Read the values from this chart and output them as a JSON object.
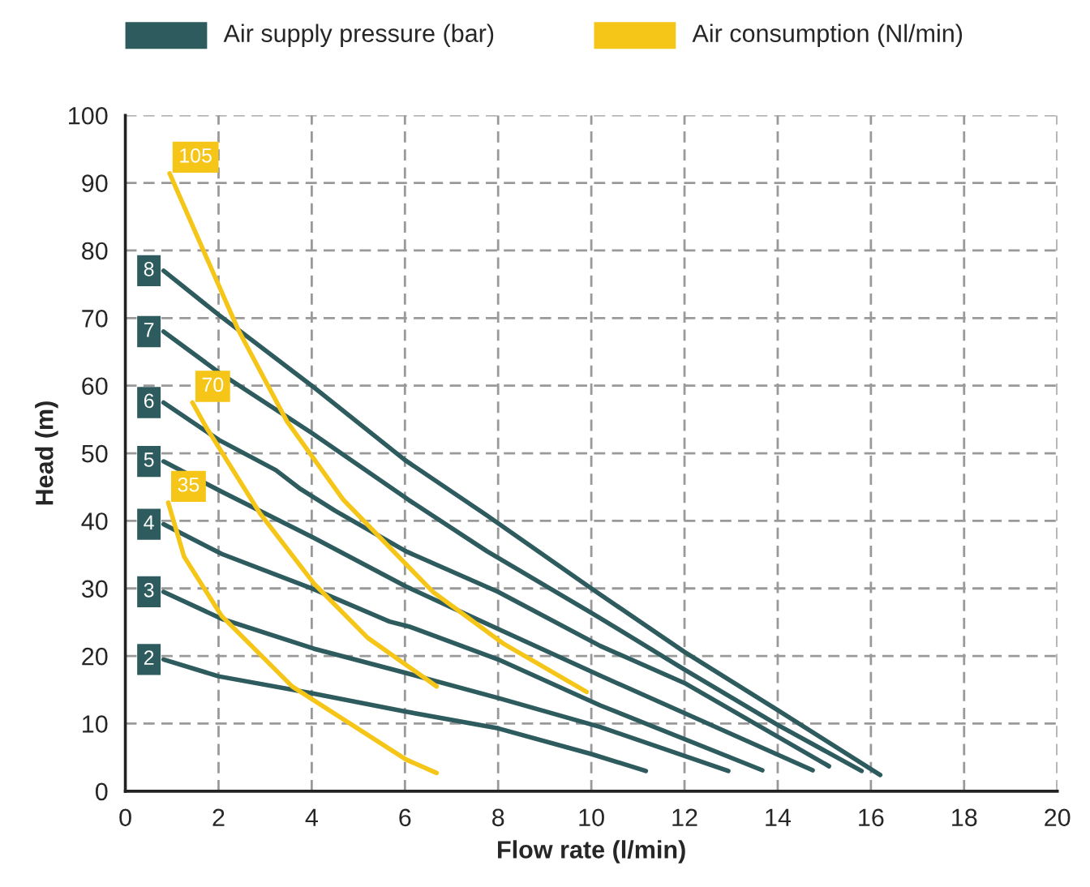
{
  "chart_data": {
    "type": "line",
    "xlabel": "Flow rate (l/min)",
    "ylabel": "Head (m)",
    "annotations": [
      "Air supply pressure (bar)",
      "Air consumption (Nl/min)"
    ],
    "grid": true,
    "line_style": "solid",
    "xlim": [
      0,
      20
    ],
    "xticks": [
      0,
      2,
      4,
      6,
      8,
      10,
      12,
      14,
      16,
      18,
      20
    ],
    "ylim": [
      0,
      100
    ],
    "yticks": [
      0,
      10,
      20,
      30,
      40,
      50,
      60,
      70,
      80,
      90,
      100
    ],
    "series": [
      {
        "name": "8",
        "color": "#2e5b5e",
        "x": [
          0.82,
          2,
          4,
          6,
          7.76,
          10,
          12,
          14,
          16.2
        ],
        "values": [
          77,
          70.5,
          60,
          49,
          40.8,
          30,
          20.6,
          12,
          2.4
        ]
      },
      {
        "name": "7",
        "color": "#2e5b5e",
        "x": [
          0.82,
          2,
          4,
          6.08,
          7.76,
          10,
          12,
          14,
          15.8
        ],
        "values": [
          68,
          62,
          53,
          43.1,
          35.5,
          26.4,
          18,
          9.8,
          3
        ]
      },
      {
        "name": "6",
        "color": "#2e5b5e",
        "x": [
          0.82,
          2,
          3.23,
          3.76,
          4.5,
          6.02,
          8,
          10.19,
          12,
          15.1
        ],
        "values": [
          57.5,
          52,
          47.5,
          44.7,
          41.5,
          35.5,
          29.5,
          21.5,
          16,
          3.7
        ]
      },
      {
        "name": "5",
        "color": "#2e5b5e",
        "x": [
          0.82,
          2.07,
          4.04,
          6.02,
          8,
          10.19,
          14.75
        ],
        "values": [
          48.8,
          44.3,
          37.5,
          30.3,
          24,
          17.1,
          3.1
        ]
      },
      {
        "name": "4",
        "color": "#2e5b5e",
        "x": [
          0.82,
          2.07,
          4.04,
          5.67,
          6.12,
          8,
          10.19,
          13.67
        ],
        "values": [
          39.5,
          35.1,
          29.9,
          25.1,
          24.3,
          19.5,
          12.7,
          3.1
        ]
      },
      {
        "name": "3",
        "color": "#2e5b5e",
        "x": [
          0.82,
          2.07,
          4.04,
          6.02,
          8,
          10.19,
          12.94
        ],
        "values": [
          29.5,
          25.5,
          21.1,
          17.5,
          13.8,
          9.5,
          3
        ]
      },
      {
        "name": "2",
        "color": "#2e5b5e",
        "x": [
          0.82,
          2,
          4,
          6,
          8,
          10,
          11.17
        ],
        "values": [
          19.5,
          17,
          14.5,
          11.8,
          9.3,
          5.5,
          3
        ]
      },
      {
        "name": "105",
        "color": "#f5c518",
        "x": [
          0.95,
          2.42,
          3.47,
          4.68,
          6.6,
          8.1,
          9.9
        ],
        "values": [
          91.4,
          68.3,
          54.7,
          43.1,
          29.5,
          21.9,
          14.7
        ]
      },
      {
        "name": "70",
        "color": "#f5c518",
        "x": [
          1.44,
          1.73,
          2.89,
          4.05,
          5.2,
          6.68
        ],
        "values": [
          57.5,
          53.9,
          41.1,
          30.7,
          22.7,
          15.5
        ]
      },
      {
        "name": "35",
        "color": "#f5c518",
        "x": [
          0.92,
          1.26,
          2.07,
          3.58,
          6.02,
          6.68
        ],
        "values": [
          42.7,
          34.7,
          25.9,
          15.5,
          4.7,
          2.7
        ]
      }
    ]
  }
}
